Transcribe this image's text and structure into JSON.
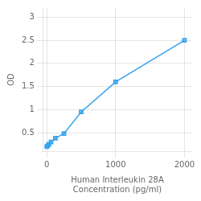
{
  "chart_data": {
    "type": "line",
    "xlabel": "Human Interleukin 28A\nConcentration (pg/ml)",
    "ylabel": "OD",
    "x": [
      0,
      15.6,
      31.25,
      62.5,
      125,
      250,
      500,
      1000,
      2000
    ],
    "values": [
      0.2,
      0.22,
      0.25,
      0.3,
      0.38,
      0.48,
      0.95,
      1.6,
      2.5
    ],
    "marker": "square",
    "xlim": [
      -50,
      2100
    ],
    "xticks": [
      0,
      1000,
      2000
    ],
    "ylim": [
      0.1,
      3.2
    ],
    "yticks": [
      0.5,
      1,
      1.5,
      2,
      2.5,
      3
    ],
    "grid": true
  }
}
